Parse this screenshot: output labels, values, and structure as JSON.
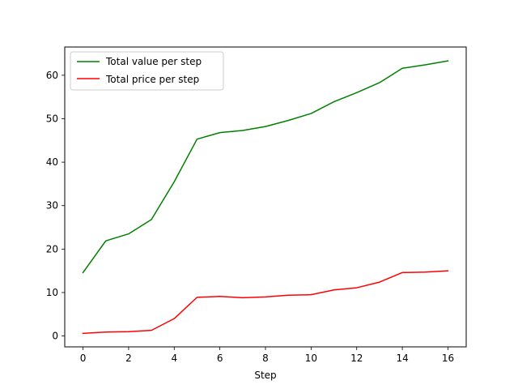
{
  "chart_data": {
    "type": "line",
    "title": "",
    "xlabel": "Step",
    "ylabel": "",
    "xlim": [
      -0.8,
      16.8
    ],
    "ylim": [
      -2.5,
      66.5
    ],
    "xticks": [
      0,
      2,
      4,
      6,
      8,
      10,
      12,
      14,
      16
    ],
    "yticks": [
      0,
      10,
      20,
      30,
      40,
      50,
      60
    ],
    "grid": false,
    "legend_position": "upper left",
    "x": [
      0,
      1,
      2,
      3,
      4,
      5,
      6,
      7,
      8,
      9,
      10,
      11,
      12,
      13,
      14,
      15,
      16
    ],
    "series": [
      {
        "name": "Total value per step",
        "color": "#008000",
        "values": [
          14.6,
          21.9,
          23.5,
          26.8,
          35.5,
          45.3,
          46.8,
          47.3,
          48.2,
          49.6,
          51.2,
          53.9,
          56.0,
          58.3,
          61.6,
          62.4,
          63.3
        ]
      },
      {
        "name": "Total price per step",
        "color": "#ff0000",
        "values": [
          0.6,
          0.9,
          1.0,
          1.3,
          4.0,
          8.9,
          9.1,
          8.8,
          9.0,
          9.4,
          9.5,
          10.6,
          11.1,
          12.4,
          14.6,
          14.7,
          15.0
        ]
      }
    ]
  }
}
